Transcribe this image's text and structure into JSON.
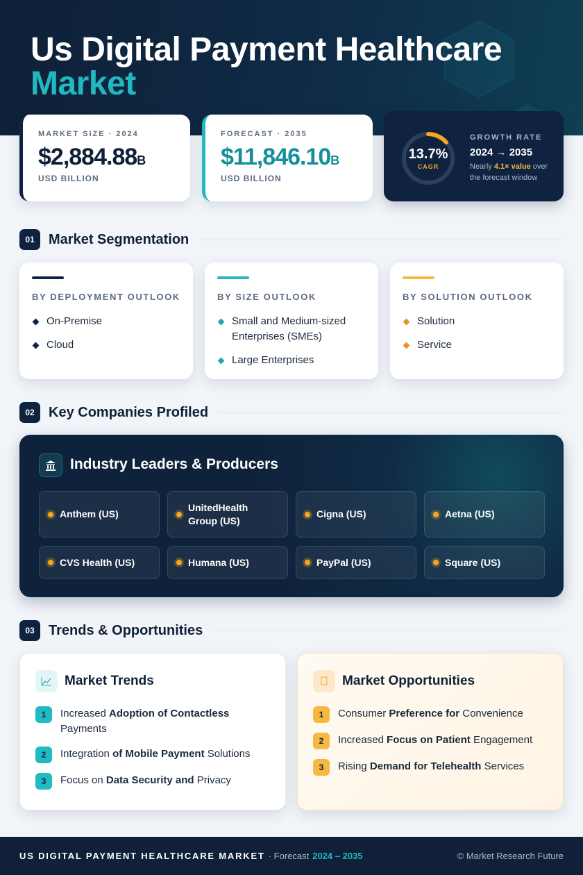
{
  "header": {
    "title_line1": "Us Digital Payment Healthcare",
    "title_line2": "Market"
  },
  "stats": {
    "market_size": {
      "label": "MARKET SIZE · 2024",
      "value": "$2,884.88",
      "unit": "B",
      "caption": "USD BILLION"
    },
    "forecast": {
      "label": "FORECAST · 2035",
      "value": "$11,846.10",
      "unit": "B",
      "caption": "USD BILLION"
    },
    "growth": {
      "cagr": "13.7%",
      "cagr_label": "CAGR",
      "label": "GROWTH RATE",
      "period": "2024 → 2035",
      "note": [
        "Nearly ",
        "4.1× value",
        " over the forecast window"
      ]
    }
  },
  "sections": [
    {
      "number": "01",
      "title": "Market Segmentation"
    },
    {
      "number": "02",
      "title": "Key Companies Profiled"
    },
    {
      "number": "03",
      "title": "Trends & Opportunities"
    }
  ],
  "segmentation": [
    {
      "title": "BY DEPLOYMENT OUTLOOK",
      "items": [
        "On-Premise",
        "Cloud"
      ]
    },
    {
      "title": "BY SIZE OUTLOOK",
      "items": [
        "Small and Medium-sized Enterprises (SMEs)",
        "Large Enterprises"
      ]
    },
    {
      "title": "BY SOLUTION OUTLOOK",
      "items": [
        "Solution",
        "Service"
      ]
    }
  ],
  "companies": {
    "title": "Industry Leaders & Producers",
    "items": [
      "Anthem (US)",
      "UnitedHealth Group (US)",
      "Cigna (US)",
      "Aetna (US)",
      "CVS Health (US)",
      "Humana (US)",
      "PayPal (US)",
      "Square (US)"
    ]
  },
  "trends": {
    "title": "Market Trends",
    "items": [
      {
        "number": "1",
        "parts": [
          "Increased ",
          "Adoption of Contactless",
          " Payments"
        ]
      },
      {
        "number": "2",
        "parts": [
          "Integration ",
          "of Mobile Payment",
          " Solutions"
        ]
      },
      {
        "number": "3",
        "parts": [
          "Focus on ",
          "Data Security and",
          " Privacy"
        ]
      }
    ]
  },
  "opportunities": {
    "title": "Market Opportunities",
    "items": [
      {
        "number": "1",
        "parts": [
          "Consumer ",
          "Preference for",
          " Convenience"
        ]
      },
      {
        "number": "2",
        "parts": [
          "Increased ",
          "Focus on Patient",
          " Engagement"
        ]
      },
      {
        "number": "3",
        "parts": [
          "Rising ",
          "Demand for Telehealth",
          " Services"
        ]
      }
    ]
  },
  "footer": {
    "title": "US DIGITAL PAYMENT HEALTHCARE MARKET",
    "forecast": "· Forecast",
    "period": "2024 – 2035",
    "copyright": "© Market Research Future"
  }
}
